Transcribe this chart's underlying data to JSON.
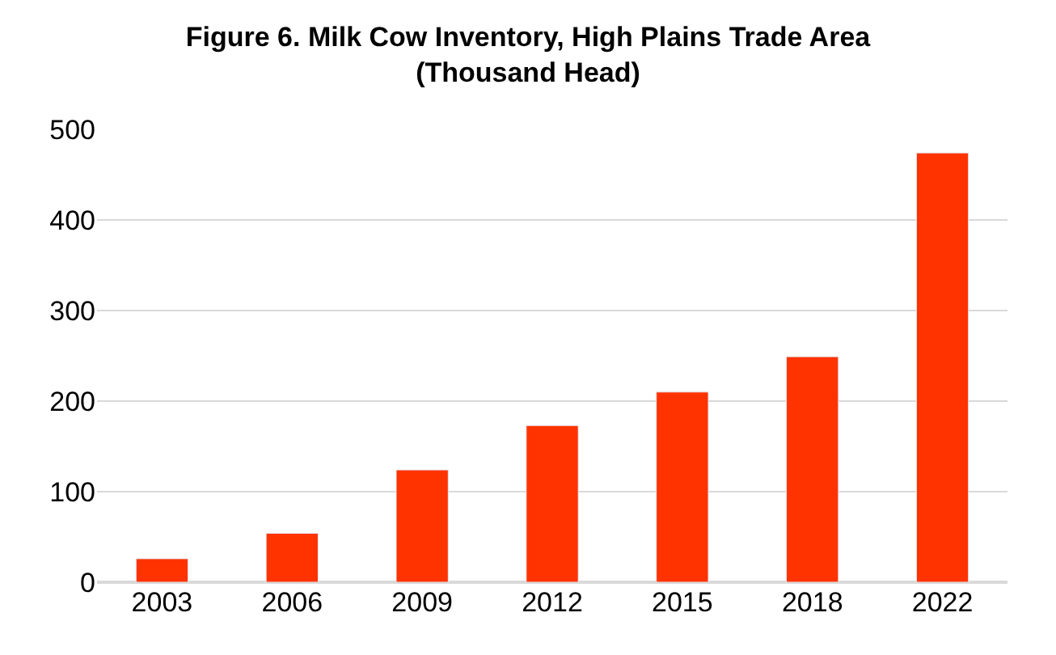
{
  "chart_data": {
    "type": "bar",
    "title": "Figure 6. Milk Cow Inventory, High Plains Trade Area\n(Thousand Head)",
    "categories": [
      "2003",
      "2006",
      "2009",
      "2012",
      "2015",
      "2018",
      "2022"
    ],
    "values": [
      26,
      54,
      124,
      173,
      210,
      249,
      474
    ],
    "color": "#ff3300",
    "ylim": [
      0,
      500
    ],
    "yticks": [
      0,
      100,
      200,
      300,
      400,
      500
    ],
    "grid": "y",
    "legend": false
  }
}
